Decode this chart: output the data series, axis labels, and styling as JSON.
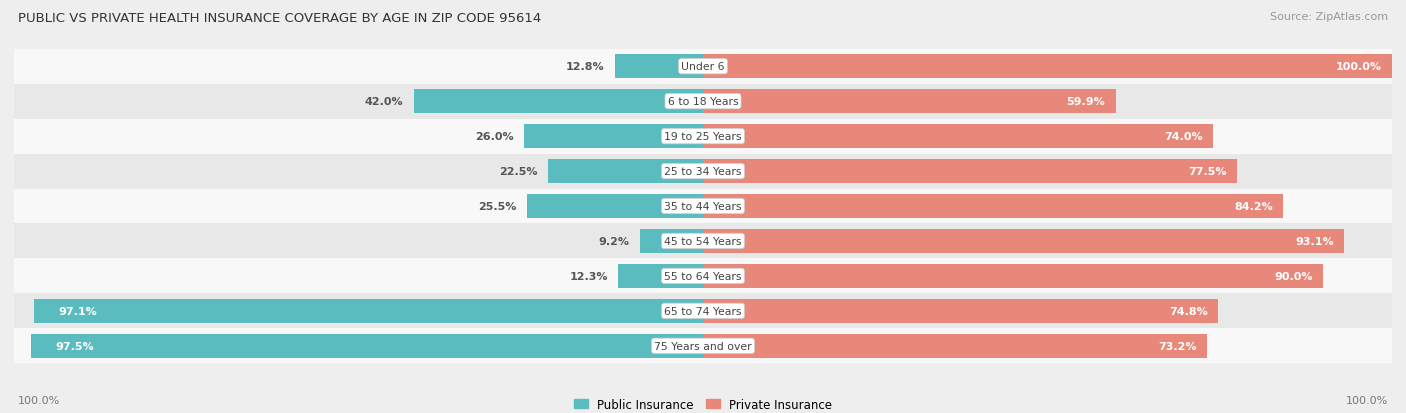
{
  "title": "PUBLIC VS PRIVATE HEALTH INSURANCE COVERAGE BY AGE IN ZIP CODE 95614",
  "source": "Source: ZipAtlas.com",
  "categories": [
    "Under 6",
    "6 to 18 Years",
    "19 to 25 Years",
    "25 to 34 Years",
    "35 to 44 Years",
    "45 to 54 Years",
    "55 to 64 Years",
    "65 to 74 Years",
    "75 Years and over"
  ],
  "public_values": [
    12.8,
    42.0,
    26.0,
    22.5,
    25.5,
    9.2,
    12.3,
    97.1,
    97.5
  ],
  "private_values": [
    100.0,
    59.9,
    74.0,
    77.5,
    84.2,
    93.1,
    90.0,
    74.8,
    73.2
  ],
  "public_color": "#5bbcbf",
  "private_color": "#e8887a",
  "bg_color": "#eeeeee",
  "row_colors": [
    "#f8f8f8",
    "#e8e8e8"
  ],
  "title_color": "#333333",
  "source_color": "#999999",
  "label_color_dark": "#555555",
  "label_color_white": "#ffffff",
  "center_label_bg": "#ffffff",
  "center_label_color": "#444444",
  "axis_label_left": "100.0%",
  "axis_label_right": "100.0%",
  "legend_public": "Public Insurance",
  "legend_private": "Private Insurance",
  "pub_threshold": 50,
  "priv_label_inside_threshold": 15
}
